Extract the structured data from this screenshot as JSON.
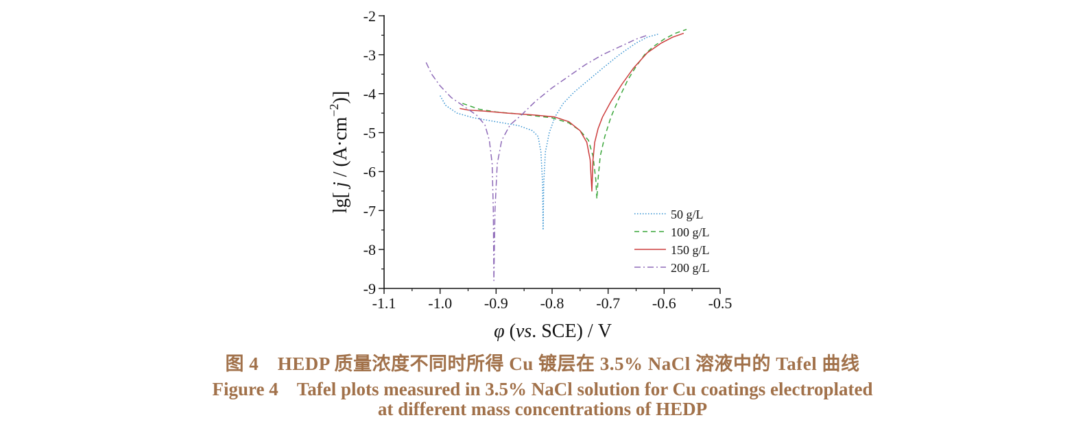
{
  "chart_data": {
    "type": "line",
    "xlabel": "φ (vs. SCE) / V",
    "xlabel_parts": {
      "sym": "φ",
      "open": " (",
      "vs": "vs",
      "rest": ". SCE) / V"
    },
    "ylabel": "lg[ j / (A·cm⁻²)]",
    "ylabel_parts": {
      "pre": "lg[ ",
      "j": "j",
      "mid": " / (A·cm",
      "sup": "−2",
      "post": ")]"
    },
    "xlim": [
      -1.1,
      -0.5
    ],
    "ylim": [
      -9,
      -2
    ],
    "xticks": [
      -1.1,
      -1.0,
      -0.9,
      -0.8,
      -0.7,
      -0.6,
      -0.5
    ],
    "xtick_labels": [
      "-1.1",
      "-1.0",
      "-0.9",
      "-0.8",
      "-0.7",
      "-0.6",
      "-0.5"
    ],
    "yticks": [
      -9,
      -8,
      -7,
      -6,
      -5,
      -4,
      -3,
      -2
    ],
    "ytick_labels": [
      "-9",
      "-8",
      "-7",
      "-6",
      "-5",
      "-4",
      "-3",
      "-2"
    ],
    "grid": false,
    "legend_position": "bottom-right",
    "series": [
      {
        "name": "50 g/L",
        "color": "#2f8fd0",
        "dash": "dotted",
        "x": [
          -1.0,
          -0.99,
          -0.97,
          -0.94,
          -0.9,
          -0.86,
          -0.835,
          -0.825,
          -0.82,
          -0.817,
          -0.816,
          -0.815,
          -0.812,
          -0.805,
          -0.795,
          -0.78,
          -0.76,
          -0.735,
          -0.71,
          -0.68,
          -0.65,
          -0.63,
          -0.61
        ],
        "y": [
          -4.05,
          -4.3,
          -4.5,
          -4.62,
          -4.72,
          -4.82,
          -4.95,
          -5.1,
          -5.5,
          -6.3,
          -7.5,
          -6.3,
          -5.5,
          -5.0,
          -4.6,
          -4.25,
          -3.95,
          -3.65,
          -3.35,
          -3.0,
          -2.7,
          -2.55,
          -2.47
        ]
      },
      {
        "name": "100 g/L",
        "color": "#3aa63a",
        "dash": "dashed",
        "x": [
          -0.96,
          -0.93,
          -0.9,
          -0.86,
          -0.8,
          -0.77,
          -0.75,
          -0.735,
          -0.727,
          -0.722,
          -0.72,
          -0.718,
          -0.714,
          -0.706,
          -0.695,
          -0.68,
          -0.665,
          -0.65,
          -0.635,
          -0.62,
          -0.6,
          -0.58,
          -0.56
        ],
        "y": [
          -4.25,
          -4.4,
          -4.47,
          -4.52,
          -4.62,
          -4.75,
          -4.95,
          -5.2,
          -5.6,
          -6.2,
          -6.7,
          -6.2,
          -5.6,
          -5.1,
          -4.6,
          -4.1,
          -3.65,
          -3.3,
          -3.0,
          -2.8,
          -2.6,
          -2.45,
          -2.35
        ]
      },
      {
        "name": "150 g/L",
        "color": "#cc3b3b",
        "dash": "solid",
        "x": [
          -0.965,
          -0.95,
          -0.92,
          -0.88,
          -0.83,
          -0.795,
          -0.77,
          -0.75,
          -0.738,
          -0.732,
          -0.729,
          -0.727,
          -0.724,
          -0.718,
          -0.71,
          -0.695,
          -0.675,
          -0.655,
          -0.63,
          -0.605,
          -0.585,
          -0.565
        ],
        "y": [
          -4.38,
          -4.42,
          -4.45,
          -4.5,
          -4.55,
          -4.6,
          -4.72,
          -4.95,
          -5.25,
          -5.7,
          -6.5,
          -5.7,
          -5.25,
          -4.9,
          -4.6,
          -4.2,
          -3.75,
          -3.35,
          -2.95,
          -2.7,
          -2.55,
          -2.45
        ]
      },
      {
        "name": "200 g/L",
        "color": "#8e6ab8",
        "dash": "dashdot",
        "x": [
          -1.025,
          -1.015,
          -1.0,
          -0.98,
          -0.955,
          -0.935,
          -0.92,
          -0.912,
          -0.907,
          -0.905,
          -0.904,
          -0.902,
          -0.898,
          -0.89,
          -0.875,
          -0.855,
          -0.83,
          -0.8,
          -0.77,
          -0.74,
          -0.71,
          -0.68,
          -0.65,
          -0.63
        ],
        "y": [
          -3.2,
          -3.5,
          -3.8,
          -4.1,
          -4.35,
          -4.55,
          -4.8,
          -5.2,
          -5.8,
          -7.0,
          -8.8,
          -7.0,
          -5.8,
          -5.2,
          -4.8,
          -4.55,
          -4.2,
          -3.85,
          -3.55,
          -3.25,
          -3.0,
          -2.8,
          -2.6,
          -2.5
        ]
      }
    ]
  },
  "caption": {
    "cn": "图 4　HEDP 质量浓度不同时所得 Cu 镀层在 3.5% NaCl 溶液中的 Tafel 曲线",
    "en_line1": "Figure 4　Tafel plots measured in 3.5% NaCl solution for Cu coatings electroplated",
    "en_line2": "at different mass concentrations of HEDP"
  }
}
